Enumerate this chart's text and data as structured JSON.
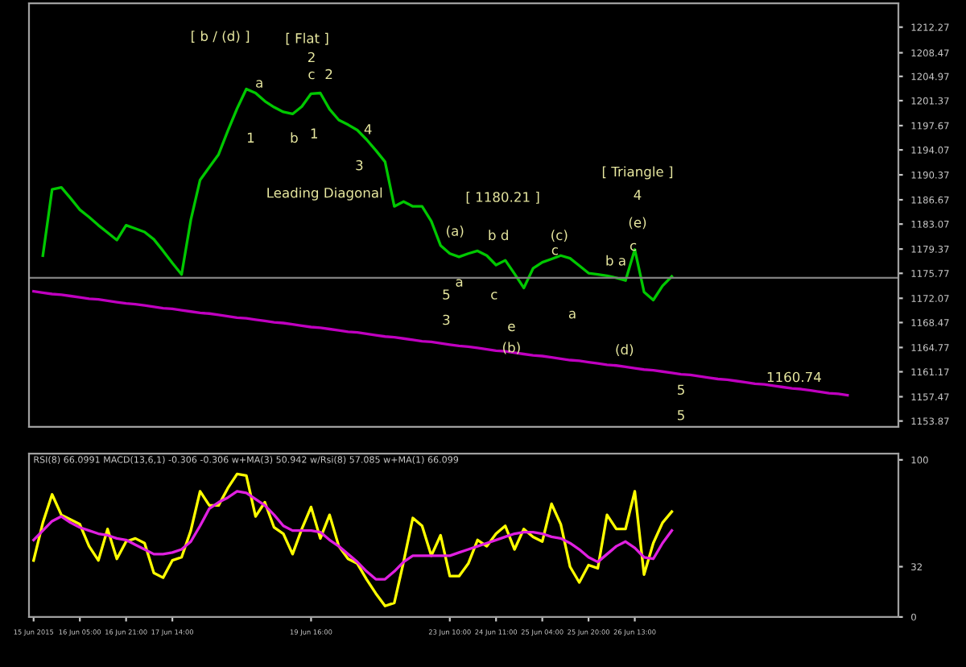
{
  "chart_data": [
    {
      "type": "line",
      "ylim": [
        1153.0,
        1215.8
      ],
      "categories": [
        null,
        null,
        null,
        null,
        null,
        null,
        null,
        null,
        null,
        null,
        null,
        null,
        null,
        null,
        null,
        null,
        null,
        null,
        null,
        null,
        null,
        null,
        null,
        null,
        null,
        null,
        null,
        null,
        null,
        null,
        null,
        null,
        null,
        null,
        null,
        null,
        null,
        null,
        null,
        null,
        null,
        null,
        null,
        null,
        null,
        null,
        null,
        null,
        null,
        null,
        null,
        null,
        null,
        null,
        null,
        null,
        null,
        null,
        null,
        null,
        null,
        null,
        null,
        null,
        null,
        null,
        null,
        null,
        null,
        null,
        null,
        null,
        null,
        null,
        null,
        null,
        null,
        null,
        null,
        null,
        null,
        null,
        null,
        null,
        null,
        null,
        null,
        null,
        null,
        null,
        null,
        null,
        null,
        null
      ],
      "yticks": [
        1212.27,
        1208.47,
        1204.97,
        1201.37,
        1197.67,
        1194.07,
        1190.37,
        1186.67,
        1183.07,
        1179.37,
        1175.77,
        1172.07,
        1168.47,
        1164.77,
        1161.17,
        1157.47,
        1153.87
      ],
      "tick_labels": "y",
      "series": [
        {
          "color": "#00c800",
          "values": [
            null,
            1178.4,
            1188.2,
            1188.5,
            1186.9,
            1185.2,
            1184.1,
            1182.9,
            1181.8,
            1180.7,
            1182.9,
            1182.4,
            1181.9,
            1180.8,
            1179.1,
            1177.3,
            1175.6,
            1183.7,
            1189.6,
            1191.5,
            1193.4,
            1196.9,
            1200.2,
            1203.1,
            1202.5,
            1201.3,
            1200.4,
            1199.7,
            1199.4,
            1200.5,
            1202.4,
            1202.5,
            1200.1,
            1198.5,
            1197.8,
            1197.0,
            1195.6,
            1194.0,
            1192.3,
            1185.7,
            1186.4,
            1185.7,
            1185.7,
            1183.5,
            1179.9,
            1178.7,
            1178.2,
            1178.7,
            1179.1,
            1178.4,
            1177.0,
            1177.7,
            1175.7,
            1173.6,
            1176.5,
            1177.4,
            1177.9,
            1178.4,
            1178.0,
            1176.9,
            1175.8,
            1175.6,
            1175.4,
            1175.1,
            1174.7,
            1179.3,
            1173.0,
            1171.8,
            1173.9,
            1175.3,
            null,
            null,
            null,
            null,
            null,
            null,
            null,
            null,
            null,
            null,
            null,
            null,
            null,
            null,
            null,
            null,
            null,
            null,
            null,
            null,
            null,
            null,
            null,
            null
          ]
        },
        {
          "color": "#c000c0",
          "values": [
            1173.1,
            1172.9,
            1172.7,
            1172.6,
            1172.4,
            1172.2,
            1172.0,
            1171.9,
            1171.7,
            1171.5,
            1171.3,
            1171.2,
            1171.0,
            1170.8,
            1170.6,
            1170.5,
            1170.3,
            1170.1,
            1169.9,
            1169.8,
            1169.6,
            1169.4,
            1169.2,
            1169.1,
            1168.9,
            1168.7,
            1168.5,
            1168.4,
            1168.2,
            1168.0,
            1167.8,
            1167.7,
            1167.5,
            1167.3,
            1167.1,
            1167.0,
            1166.8,
            1166.6,
            1166.4,
            1166.3,
            1166.1,
            1165.9,
            1165.7,
            1165.6,
            1165.4,
            1165.2,
            1165.0,
            1164.9,
            1164.7,
            1164.5,
            1164.3,
            1164.2,
            1164.0,
            1163.8,
            1163.6,
            1163.5,
            1163.3,
            1163.1,
            1162.9,
            1162.8,
            1162.6,
            1162.4,
            1162.2,
            1162.1,
            1161.9,
            1161.7,
            1161.5,
            1161.4,
            1161.2,
            1161.0,
            1160.8,
            1160.7,
            1160.5,
            1160.3,
            1160.1,
            1160.0,
            1159.8,
            1159.6,
            1159.4,
            1159.3,
            1159.1,
            1158.9,
            1158.7,
            1158.6,
            1158.4,
            1158.2,
            1158.0,
            1157.9,
            1157.7,
            null,
            null,
            null,
            null,
            null
          ]
        }
      ],
      "ref_lines": [
        {
          "axis": "y",
          "value": 1175.1,
          "color": "#808080"
        }
      ],
      "annotations": [
        "[ b / (d) ]",
        "[ Flat ]",
        "2",
        "c",
        "2",
        "a",
        "1",
        "b",
        "1",
        "4",
        "3",
        "Leading Diagonal",
        "[ 1180.21 ]",
        "(a)",
        "b d",
        "a",
        "c",
        "5",
        "3",
        "e",
        "(b)",
        "(c)",
        "c",
        "a",
        "[ Triangle ]",
        "4",
        "(e)",
        "c",
        "b a",
        "(d)",
        "5",
        "5",
        "1160.74"
      ]
    },
    {
      "type": "line",
      "ylim": [
        0,
        104
      ],
      "categories": [
        "15 Jun 2015",
        null,
        null,
        null,
        null,
        "16 Jun 05:00",
        null,
        null,
        null,
        null,
        "16 Jun 21:00",
        null,
        null,
        null,
        null,
        "17 Jun 14:00",
        null,
        null,
        null,
        null,
        null,
        null,
        null,
        null,
        null,
        null,
        null,
        null,
        null,
        null,
        "19 Jun 16:00",
        null,
        null,
        null,
        null,
        null,
        null,
        null,
        null,
        null,
        null,
        null,
        null,
        null,
        null,
        "23 Jun 10:00",
        null,
        null,
        null,
        null,
        "24 Jun 11:00",
        null,
        null,
        null,
        null,
        "25 Jun 04:00",
        null,
        null,
        null,
        null,
        "25 Jun 20:00",
        null,
        null,
        null,
        null,
        "26 Jun 13:00",
        null,
        null,
        null,
        null,
        null,
        null,
        null,
        null,
        null,
        null,
        null,
        null,
        null,
        null,
        null,
        null,
        null,
        null,
        null,
        null,
        null,
        null,
        null,
        null,
        null,
        null,
        null,
        null
      ],
      "yticks": [
        100,
        32,
        0
      ],
      "subtitle": "RSI(8) 66.0991 MACD(13,6,1) -0.306 -0.306 w+MA(3) 50.942 w/Rsi(8) 57.085 w+MA(1) 66.099",
      "series": [
        {
          "color": "#ffff00",
          "values": [
            36,
            60,
            78,
            65,
            62,
            59,
            45,
            36,
            56,
            37,
            48,
            50,
            47,
            28,
            25,
            36,
            38,
            55,
            80,
            71,
            71,
            82,
            91,
            90,
            64,
            73,
            57,
            53,
            40,
            56,
            70,
            50,
            65,
            45,
            37,
            34,
            24,
            15,
            7,
            9,
            35,
            63,
            58,
            39,
            52,
            26,
            26,
            34,
            49,
            45,
            53,
            58,
            43,
            56,
            51,
            48,
            72,
            59,
            32,
            22,
            33,
            31,
            65,
            56,
            56,
            80,
            27,
            47,
            60,
            67,
            null,
            null,
            null,
            null,
            null,
            null,
            null,
            null,
            null,
            null,
            null,
            null,
            null,
            null,
            null,
            null,
            null,
            null,
            null,
            null,
            null,
            null,
            null,
            null
          ]
        },
        {
          "color": "#e020e0",
          "values": [
            49,
            55,
            61,
            64,
            60,
            57,
            55,
            53,
            52,
            50,
            49,
            46,
            43,
            40,
            40,
            41,
            43,
            48,
            58,
            69,
            73,
            76,
            80,
            79,
            75,
            71,
            65,
            58,
            55,
            55,
            55,
            54,
            49,
            45,
            40,
            35,
            29,
            24,
            24,
            29,
            35,
            39,
            39,
            39,
            39,
            39,
            41,
            43,
            45,
            47,
            49,
            51,
            53,
            54,
            54,
            53,
            51,
            50,
            47,
            43,
            38,
            35,
            40,
            45,
            48,
            44,
            38,
            37,
            47,
            55,
            null,
            null,
            null,
            null,
            null,
            null,
            null,
            null,
            null,
            null,
            null,
            null,
            null,
            null,
            null,
            null,
            null,
            null,
            null,
            null,
            null,
            null,
            null,
            null
          ]
        }
      ]
    }
  ]
}
